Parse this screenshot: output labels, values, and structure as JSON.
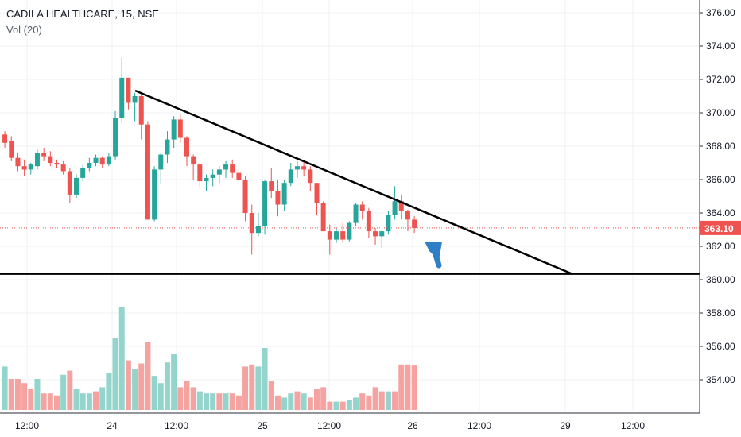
{
  "header": {
    "symbol_line": "CADILA HEALTHCARE, 15, NSE",
    "indicator_line": "Vol (20)"
  },
  "colors": {
    "up": "#26a69a",
    "down": "#ef5350",
    "vol_up": "#93d5cc",
    "vol_down": "#f5a3a1",
    "price_line": "#ef5350",
    "trendline": "#000000",
    "arrow": "#2f7fc6"
  },
  "chart_data": {
    "type": "candlestick",
    "title": "CADILA HEALTHCARE, 15, NSE",
    "volume_label": "Vol (20)",
    "y_axis": {
      "ticks": [
        "376.00",
        "374.00",
        "372.00",
        "370.00",
        "368.00",
        "366.00",
        "364.00",
        "362.00",
        "360.00",
        "358.00",
        "356.00",
        "354.00"
      ],
      "range": [
        352.7,
        376.4
      ]
    },
    "x_axis": {
      "ticks": [
        "12:00",
        "24",
        "12:00",
        "25",
        "12:00",
        "26",
        "12:00",
        "29",
        "12:00"
      ]
    },
    "last_price": "363.10",
    "last_price_value": 363.1,
    "candles": [
      [
        368.7,
        368.9,
        367.9,
        368.2
      ],
      [
        368.3,
        368.6,
        367.1,
        367.3
      ],
      [
        367.3,
        367.6,
        366.5,
        366.8
      ],
      [
        366.8,
        367.2,
        366.2,
        366.6
      ],
      [
        366.6,
        367.0,
        366.3,
        366.9
      ],
      [
        366.8,
        367.8,
        366.6,
        367.6
      ],
      [
        367.6,
        367.9,
        367.1,
        367.4
      ],
      [
        367.4,
        367.7,
        366.8,
        367.0
      ],
      [
        367.0,
        367.2,
        366.7,
        366.9
      ],
      [
        366.9,
        367.1,
        366.3,
        366.5
      ],
      [
        366.5,
        366.7,
        364.6,
        365.1
      ],
      [
        365.1,
        366.3,
        364.9,
        366.1
      ],
      [
        366.1,
        366.9,
        365.9,
        366.7
      ],
      [
        366.7,
        367.3,
        366.5,
        367.0
      ],
      [
        367.0,
        367.5,
        366.8,
        367.3
      ],
      [
        367.3,
        367.4,
        366.7,
        366.9
      ],
      [
        366.9,
        367.6,
        366.8,
        367.4
      ],
      [
        367.4,
        370.1,
        367.2,
        369.7
      ],
      [
        369.7,
        373.3,
        369.4,
        372.1
      ],
      [
        372.1,
        372.1,
        370.2,
        370.6
      ],
      [
        370.6,
        371.2,
        369.5,
        371.0
      ],
      [
        371.0,
        371.2,
        368.4,
        369.3
      ],
      [
        369.3,
        369.5,
        363.6,
        363.6
      ],
      [
        363.6,
        366.8,
        363.5,
        366.6
      ],
      [
        366.6,
        367.6,
        365.7,
        367.5
      ],
      [
        367.5,
        368.9,
        367.0,
        368.4
      ],
      [
        368.4,
        369.8,
        367.9,
        369.6
      ],
      [
        369.6,
        369.9,
        368.2,
        368.5
      ],
      [
        368.5,
        368.6,
        366.8,
        367.4
      ],
      [
        367.4,
        367.5,
        366.0,
        366.9
      ],
      [
        366.9,
        367.0,
        365.6,
        365.9
      ],
      [
        365.9,
        366.3,
        365.3,
        366.1
      ],
      [
        366.1,
        366.6,
        365.6,
        366.3
      ],
      [
        366.3,
        366.8,
        365.8,
        366.6
      ],
      [
        366.6,
        367.1,
        366.1,
        366.9
      ],
      [
        366.9,
        367.2,
        366.1,
        366.4
      ],
      [
        366.4,
        366.7,
        365.9,
        366.0
      ],
      [
        366.0,
        366.2,
        363.5,
        364.0
      ],
      [
        364.0,
        364.5,
        361.5,
        362.8
      ],
      [
        362.8,
        364.0,
        362.6,
        363.2
      ],
      [
        363.2,
        366.0,
        362.7,
        365.9
      ],
      [
        365.9,
        366.7,
        364.9,
        365.3
      ],
      [
        365.3,
        366.0,
        363.8,
        364.5
      ],
      [
        364.5,
        366.0,
        364.1,
        365.8
      ],
      [
        365.8,
        367.0,
        365.6,
        366.6
      ],
      [
        366.6,
        367.1,
        366.1,
        366.8
      ],
      [
        366.8,
        367.1,
        366.2,
        366.6
      ],
      [
        366.6,
        366.8,
        365.3,
        365.8
      ],
      [
        365.8,
        365.8,
        363.9,
        364.6
      ],
      [
        364.6,
        364.7,
        362.9,
        362.9
      ],
      [
        362.9,
        363.3,
        361.5,
        362.4
      ],
      [
        362.4,
        363.1,
        362.2,
        362.9
      ],
      [
        362.9,
        363.4,
        362.2,
        362.4
      ],
      [
        362.4,
        363.5,
        362.3,
        363.4
      ],
      [
        363.4,
        364.6,
        363.2,
        364.5
      ],
      [
        364.5,
        364.7,
        363.6,
        364.1
      ],
      [
        364.1,
        364.3,
        362.5,
        362.9
      ],
      [
        362.9,
        363.1,
        362.1,
        362.6
      ],
      [
        362.6,
        363.0,
        361.9,
        362.9
      ],
      [
        362.9,
        364.1,
        362.7,
        363.9
      ],
      [
        363.9,
        365.6,
        363.6,
        364.7
      ],
      [
        364.7,
        365.1,
        363.6,
        364.1
      ],
      [
        364.1,
        364.2,
        362.9,
        363.6
      ],
      [
        363.6,
        363.8,
        362.8,
        363.1
      ]
    ],
    "volume": [
      {
        "v": 0.42,
        "up": true
      },
      {
        "v": 0.3,
        "up": false
      },
      {
        "v": 0.3,
        "up": false
      },
      {
        "v": 0.26,
        "up": false
      },
      {
        "v": 0.2,
        "up": false
      },
      {
        "v": 0.3,
        "up": true
      },
      {
        "v": 0.16,
        "up": false
      },
      {
        "v": 0.16,
        "up": false
      },
      {
        "v": 0.14,
        "up": false
      },
      {
        "v": 0.34,
        "up": true
      },
      {
        "v": 0.38,
        "up": false
      },
      {
        "v": 0.2,
        "up": true
      },
      {
        "v": 0.16,
        "up": true
      },
      {
        "v": 0.16,
        "up": true
      },
      {
        "v": 0.18,
        "up": false
      },
      {
        "v": 0.22,
        "up": true
      },
      {
        "v": 0.36,
        "up": true
      },
      {
        "v": 0.7,
        "up": true
      },
      {
        "v": 1.0,
        "up": true
      },
      {
        "v": 0.48,
        "up": false
      },
      {
        "v": 0.4,
        "up": true
      },
      {
        "v": 0.45,
        "up": false
      },
      {
        "v": 0.66,
        "up": false
      },
      {
        "v": 0.33,
        "up": true
      },
      {
        "v": 0.26,
        "up": true
      },
      {
        "v": 0.46,
        "up": true
      },
      {
        "v": 0.54,
        "up": true
      },
      {
        "v": 0.22,
        "up": false
      },
      {
        "v": 0.28,
        "up": false
      },
      {
        "v": 0.22,
        "up": false
      },
      {
        "v": 0.18,
        "up": true
      },
      {
        "v": 0.16,
        "up": true
      },
      {
        "v": 0.16,
        "up": true
      },
      {
        "v": 0.16,
        "up": false
      },
      {
        "v": 0.16,
        "up": true
      },
      {
        "v": 0.16,
        "up": false
      },
      {
        "v": 0.14,
        "up": false
      },
      {
        "v": 0.42,
        "up": false
      },
      {
        "v": 0.44,
        "up": false
      },
      {
        "v": 0.42,
        "up": true
      },
      {
        "v": 0.6,
        "up": true
      },
      {
        "v": 0.28,
        "up": false
      },
      {
        "v": 0.14,
        "up": false
      },
      {
        "v": 0.12,
        "up": true
      },
      {
        "v": 0.16,
        "up": true
      },
      {
        "v": 0.18,
        "up": false
      },
      {
        "v": 0.16,
        "up": true
      },
      {
        "v": 0.12,
        "up": false
      },
      {
        "v": 0.2,
        "up": false
      },
      {
        "v": 0.22,
        "up": false
      },
      {
        "v": 0.08,
        "up": false
      },
      {
        "v": 0.08,
        "up": true
      },
      {
        "v": 0.08,
        "up": false
      },
      {
        "v": 0.1,
        "up": true
      },
      {
        "v": 0.12,
        "up": true
      },
      {
        "v": 0.16,
        "up": false
      },
      {
        "v": 0.14,
        "up": false
      },
      {
        "v": 0.22,
        "up": false
      },
      {
        "v": 0.18,
        "up": false
      },
      {
        "v": 0.18,
        "up": true
      },
      {
        "v": 0.18,
        "up": false
      },
      {
        "v": 0.44,
        "up": false
      },
      {
        "v": 0.44,
        "up": false
      },
      {
        "v": 0.43,
        "up": false
      }
    ],
    "annotations": {
      "descending_trendline": [
        {
          "date": "24 ~04:00",
          "price": 371.3
        },
        {
          "date": "29 ~00:00",
          "price": 360.5
        }
      ],
      "support_line": 360.35,
      "arrow": "up"
    }
  }
}
